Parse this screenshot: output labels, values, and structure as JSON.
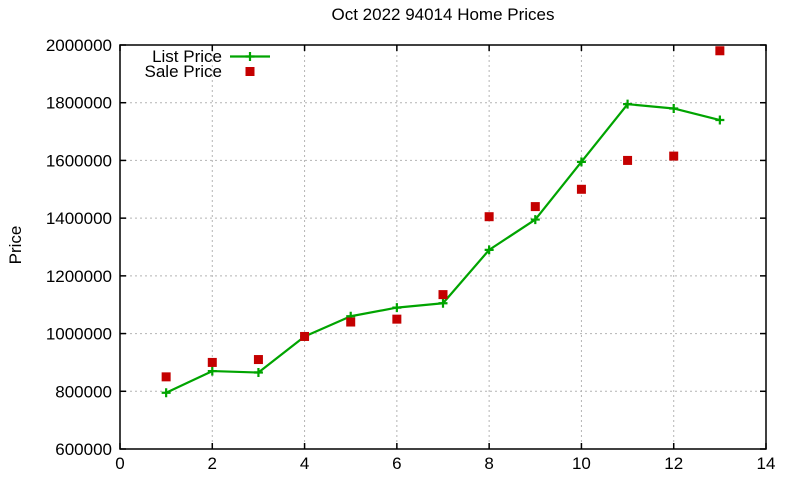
{
  "chart_data": {
    "type": "line",
    "title": "Oct 2022 94014 Home Prices",
    "xlabel": "",
    "ylabel": "Price",
    "x": [
      1,
      2,
      3,
      4,
      5,
      6,
      7,
      8,
      9,
      10,
      11,
      12,
      13
    ],
    "series": [
      {
        "name": "List Price",
        "color": "#00a400",
        "marker": "plus",
        "line": true,
        "values": [
          795000,
          870000,
          865000,
          990000,
          1060000,
          1090000,
          1105000,
          1290000,
          1395000,
          1595000,
          1795000,
          1780000,
          1740000
        ]
      },
      {
        "name": "Sale Price",
        "color": "#c40000",
        "marker": "square",
        "line": false,
        "values": [
          850000,
          900000,
          910000,
          990000,
          1040000,
          1050000,
          1135000,
          1405000,
          1440000,
          1500000,
          1600000,
          1615000,
          1980000
        ]
      }
    ],
    "xlim": [
      0,
      14
    ],
    "ylim": [
      600000,
      2000000
    ],
    "xticks": [
      0,
      2,
      4,
      6,
      8,
      10,
      12,
      14
    ],
    "yticks": [
      600000,
      800000,
      1000000,
      1200000,
      1400000,
      1600000,
      1800000,
      2000000
    ],
    "grid": true,
    "grid_style": "dotted",
    "grid_color": "#b4b4b4",
    "background_color": "#ffffff",
    "axis_color": "#000000",
    "legend_position": "top-left"
  }
}
